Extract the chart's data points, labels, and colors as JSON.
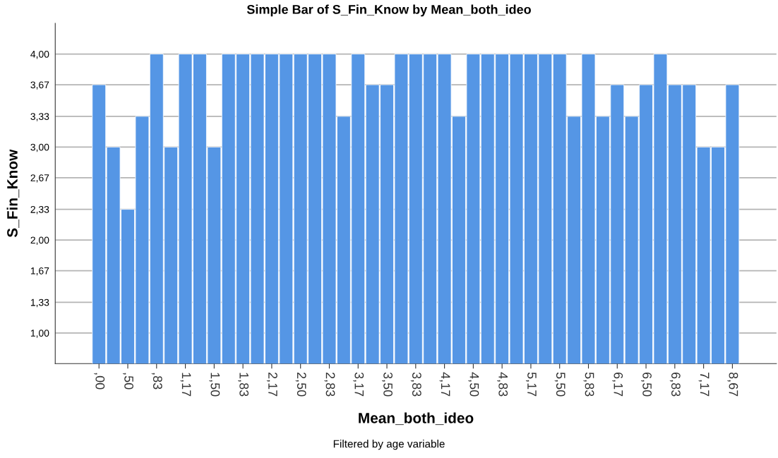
{
  "chart_data": {
    "type": "bar",
    "title": "Simple Bar of S_Fin_Know by Mean_both_ideo",
    "xlabel": "Mean_both_ideo",
    "ylabel": "S_Fin_Know",
    "annotations": [
      "Filtered by age variable"
    ],
    "categories": [
      ",00",
      null,
      ",50",
      null,
      ",83",
      null,
      "1,17",
      null,
      "1,50",
      null,
      "1,83",
      null,
      "2,17",
      null,
      "2,50",
      null,
      "2,83",
      null,
      "3,17",
      null,
      "3,50",
      null,
      "3,83",
      null,
      "4,17",
      null,
      "4,50",
      null,
      "4,83",
      null,
      "5,17",
      null,
      "5,50",
      null,
      "5,83",
      null,
      "6,17",
      null,
      "6,50",
      null,
      "6,83",
      null,
      "7,17",
      null,
      "8,67"
    ],
    "series": [
      {
        "color": "#5596e5",
        "values": [
          3.67,
          3.0,
          2.33,
          3.33,
          4.0,
          3.0,
          4.0,
          4.0,
          3.0,
          4.0,
          4.0,
          4.0,
          4.0,
          4.0,
          4.0,
          4.0,
          4.0,
          3.33,
          4.0,
          3.67,
          3.67,
          4.0,
          4.0,
          4.0,
          4.0,
          3.33,
          4.0,
          4.0,
          4.0,
          4.0,
          4.0,
          4.0,
          4.0,
          3.33,
          4.0,
          3.33,
          3.67,
          3.33,
          3.67,
          4.0,
          3.67,
          3.67,
          3.0,
          3.0,
          3.67
        ]
      }
    ],
    "ylim": [
      0.67,
      4.33
    ],
    "yticks": [
      {
        "value": 1.0,
        "label": "1,00"
      },
      {
        "value": 1.33,
        "label": "1,33"
      },
      {
        "value": 1.67,
        "label": "1,67"
      },
      {
        "value": 2.0,
        "label": "2,00"
      },
      {
        "value": 2.33,
        "label": "2,33"
      },
      {
        "value": 2.67,
        "label": "2,67"
      },
      {
        "value": 3.0,
        "label": "3,00"
      },
      {
        "value": 3.33,
        "label": "3,33"
      },
      {
        "value": 3.67,
        "label": "3,67"
      },
      {
        "value": 4.0,
        "label": "4,00"
      }
    ],
    "grid": "y"
  }
}
